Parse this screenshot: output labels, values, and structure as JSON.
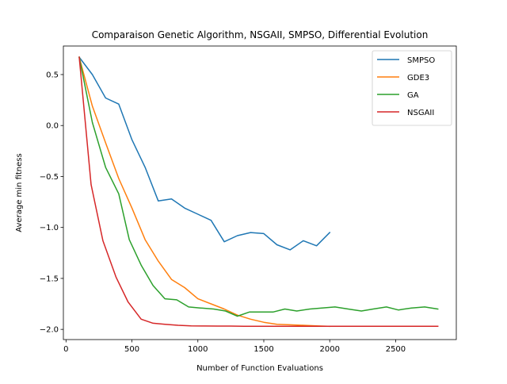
{
  "chart_data": {
    "type": "line",
    "title": "Comparaison Genetic Algorithm, NSGAII, SMPSO, Differential Evolution",
    "xlabel": "Number of Function Evaluations",
    "ylabel": "Average min fitness",
    "xlim": [
      -20,
      2960
    ],
    "ylim": [
      -2.1,
      0.78
    ],
    "xticks": [
      0,
      500,
      1000,
      1500,
      2000,
      2500
    ],
    "xtick_labels": [
      "0",
      "500",
      "1000",
      "1500",
      "2000",
      "2500"
    ],
    "yticks": [
      -2.0,
      -1.5,
      -1.0,
      -0.5,
      0.0,
      0.5
    ],
    "ytick_labels": [
      "−2.0",
      "−1.5",
      "−1.0",
      "−0.5",
      "0.0",
      "0.5"
    ],
    "grid": false,
    "legend": "top-right",
    "series": [
      {
        "name": "SMPSO",
        "color": "#1f77b4",
        "x": [
          100,
          200,
          300,
          400,
          500,
          600,
          700,
          800,
          900,
          1000,
          1100,
          1200,
          1300,
          1400,
          1500,
          1600,
          1700,
          1800,
          1900,
          2000
        ],
        "y": [
          0.67,
          0.5,
          0.27,
          0.21,
          -0.14,
          -0.41,
          -0.74,
          -0.72,
          -0.81,
          -0.87,
          -0.93,
          -1.14,
          -1.08,
          -1.05,
          -1.06,
          -1.17,
          -1.22,
          -1.13,
          -1.18,
          -1.05
        ]
      },
      {
        "name": "GDE3",
        "color": "#ff7f0e",
        "x": [
          100,
          200,
          300,
          400,
          500,
          600,
          700,
          800,
          900,
          1000,
          1100,
          1200,
          1300,
          1400,
          1500,
          1600,
          1700,
          1800,
          1900,
          2000
        ],
        "y": [
          0.67,
          0.19,
          -0.17,
          -0.52,
          -0.81,
          -1.12,
          -1.33,
          -1.51,
          -1.59,
          -1.7,
          -1.75,
          -1.8,
          -1.86,
          -1.9,
          -1.93,
          -1.95,
          -1.955,
          -1.96,
          -1.965,
          -1.97
        ]
      },
      {
        "name": "GA",
        "color": "#2ca02c",
        "x": [
          100,
          200,
          300,
          400,
          480,
          570,
          660,
          750,
          840,
          930,
          1020,
          1120,
          1210,
          1300,
          1390,
          1480,
          1570,
          1660,
          1750,
          1850,
          1940,
          2040,
          2140,
          2240,
          2330,
          2430,
          2520,
          2620,
          2720,
          2820
        ],
        "y": [
          0.67,
          0.03,
          -0.41,
          -0.67,
          -1.12,
          -1.37,
          -1.57,
          -1.7,
          -1.71,
          -1.78,
          -1.79,
          -1.8,
          -1.82,
          -1.87,
          -1.83,
          -1.83,
          -1.83,
          -1.8,
          -1.82,
          -1.8,
          -1.79,
          -1.78,
          -1.8,
          -1.82,
          -1.8,
          -1.78,
          -1.81,
          -1.79,
          -1.78,
          -1.8
        ]
      },
      {
        "name": "NSGAII",
        "color": "#d62728",
        "x": [
          100,
          190,
          280,
          380,
          470,
          570,
          660,
          750,
          850,
          950,
          1050,
          1150,
          1250,
          1350,
          1450,
          1550,
          1650,
          1750,
          1850,
          1950,
          2050,
          2150,
          2250,
          2350,
          2450,
          2550,
          2650,
          2750,
          2820
        ],
        "y": [
          0.67,
          -0.58,
          -1.13,
          -1.49,
          -1.73,
          -1.9,
          -1.94,
          -1.95,
          -1.96,
          -1.965,
          -1.967,
          -1.968,
          -1.968,
          -1.969,
          -1.969,
          -1.969,
          -1.97,
          -1.97,
          -1.97,
          -1.97,
          -1.97,
          -1.97,
          -1.97,
          -1.97,
          -1.97,
          -1.97,
          -1.97,
          -1.97,
          -1.97
        ]
      }
    ]
  }
}
